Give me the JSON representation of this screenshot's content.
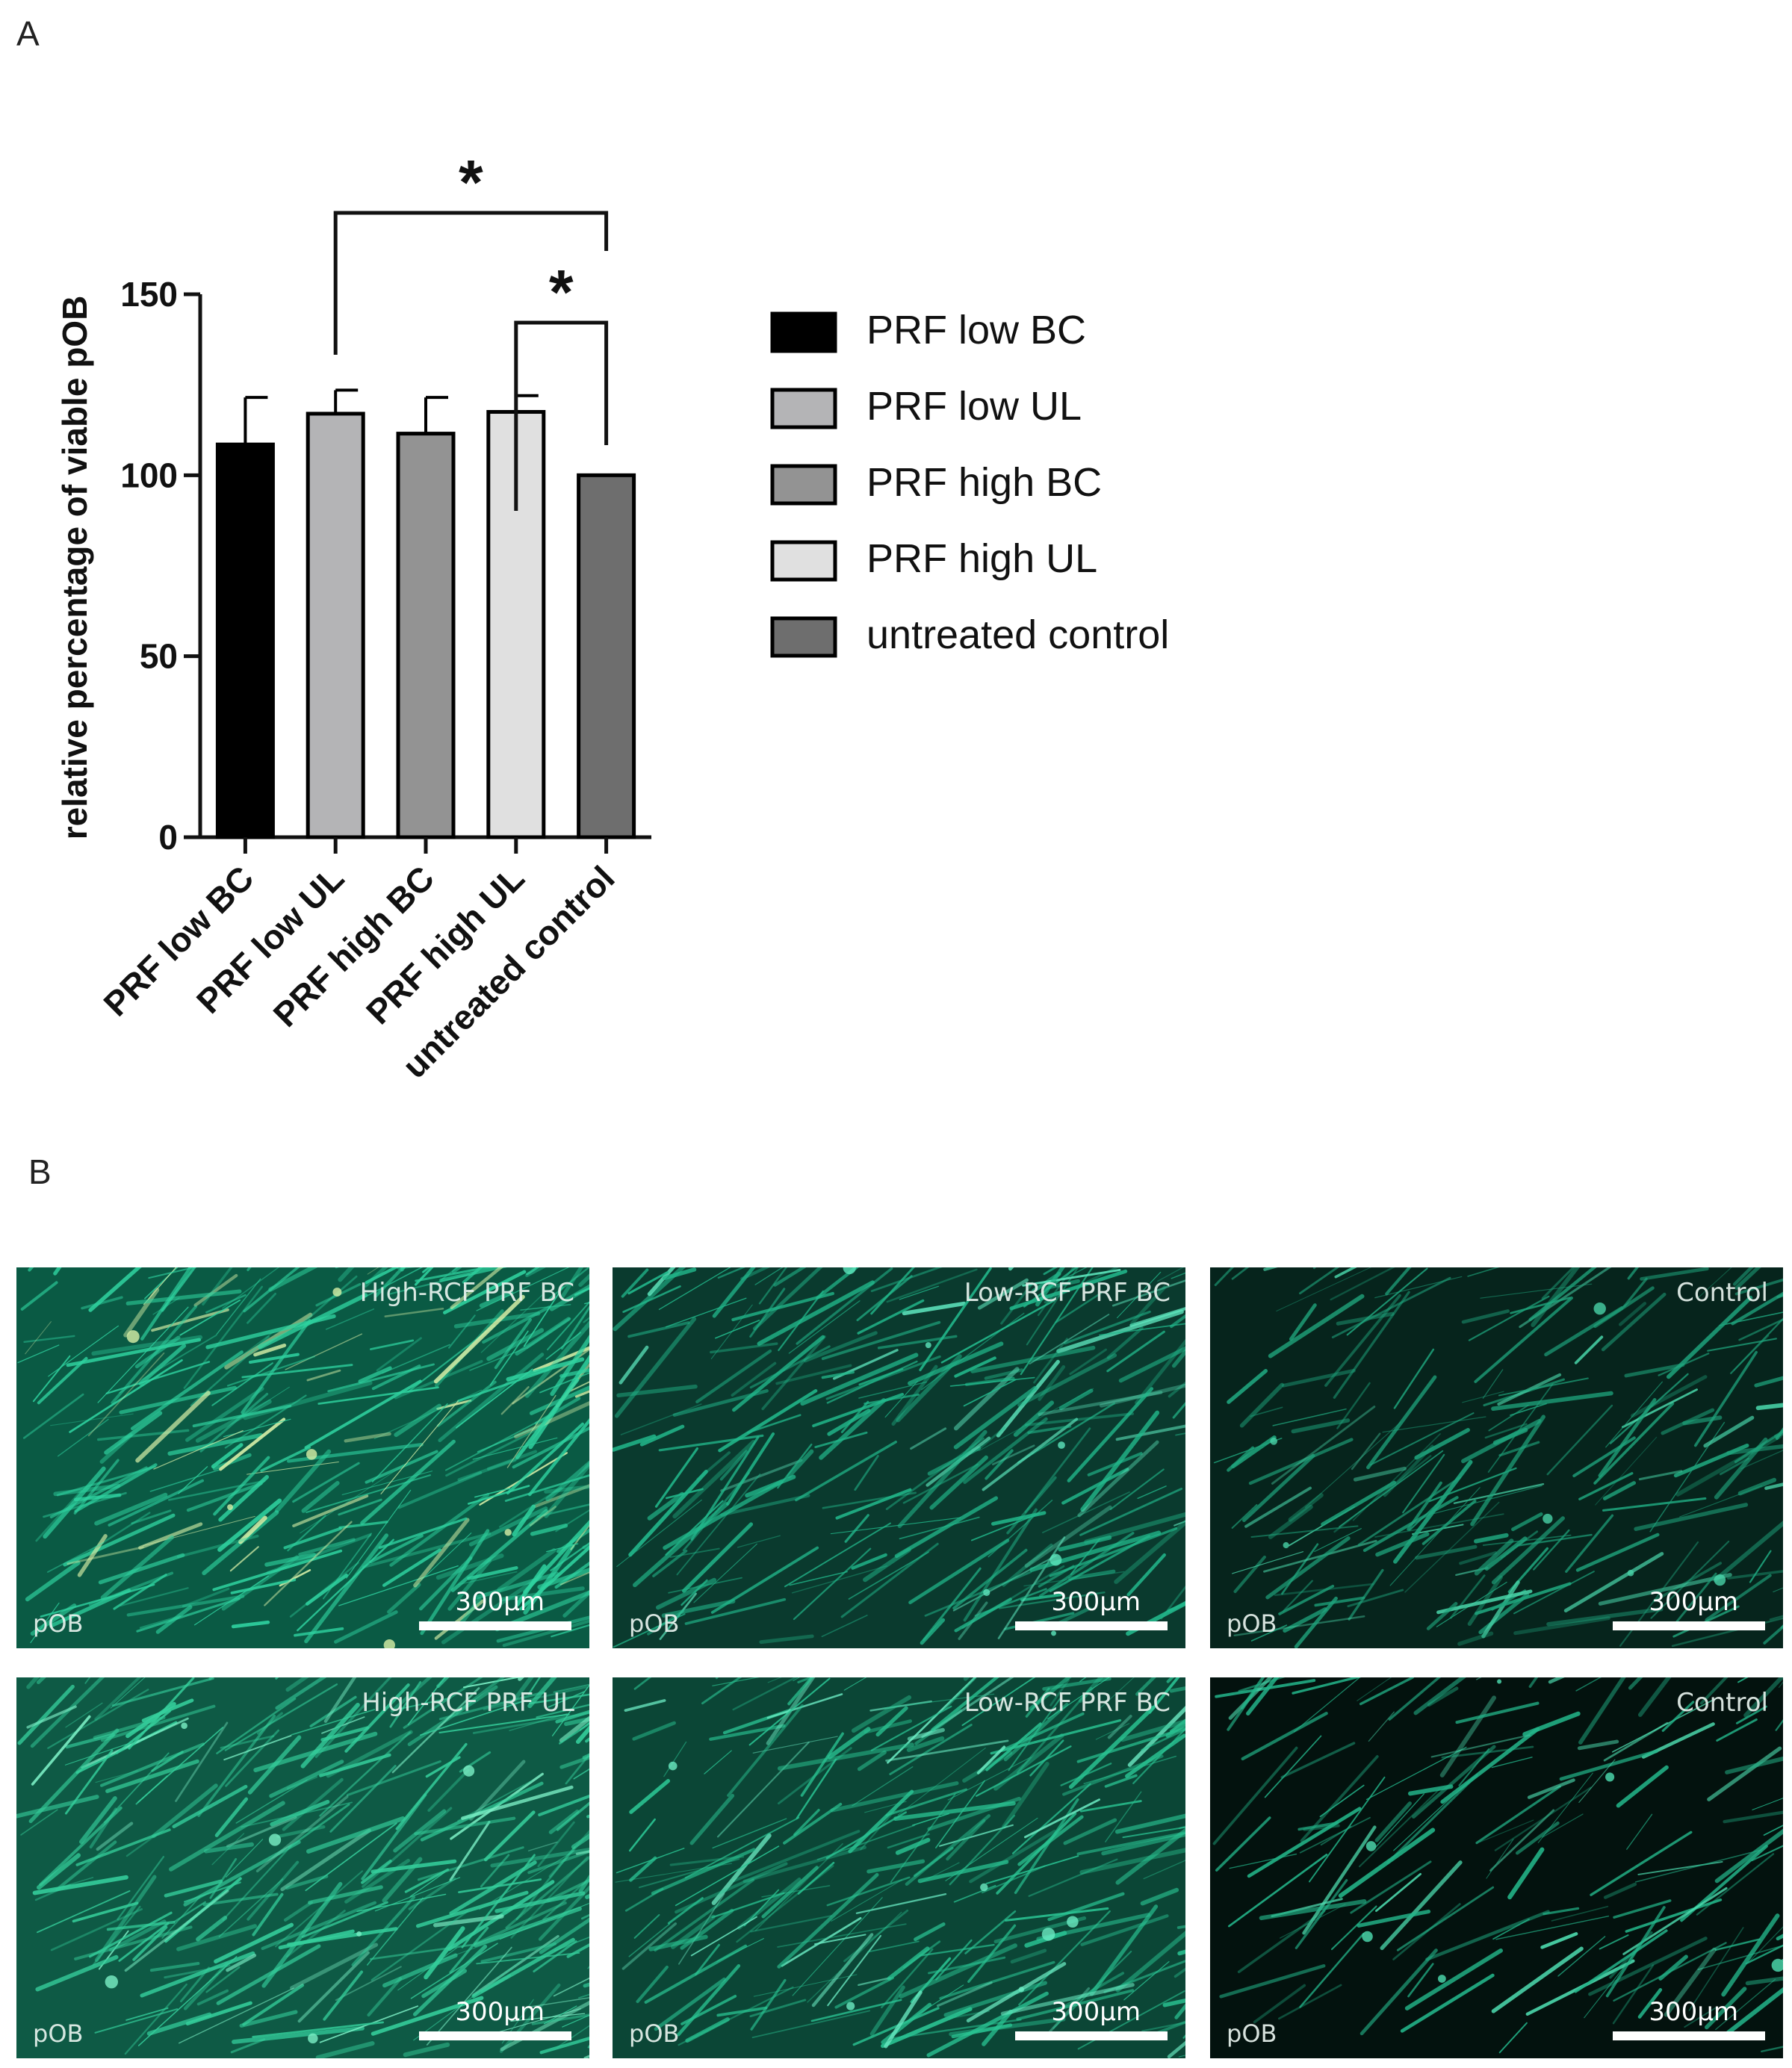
{
  "panel_a_label": "A",
  "panel_b_label": "B",
  "chart_data": {
    "type": "bar",
    "ylabel": "relative percentage of viable pOB",
    "ylim": [
      0,
      150
    ],
    "yticks": [
      0,
      50,
      100,
      150
    ],
    "categories": [
      "PRF low BC",
      "PRF low UL",
      "PRF high BC",
      "PRF high UL",
      "untreated control"
    ],
    "values": [
      108.5,
      117,
      111.5,
      117.5,
      100
    ],
    "errors": [
      13,
      6.5,
      10,
      4.5,
      0
    ],
    "colors": [
      "#000000",
      "#b4b4b6",
      "#939393",
      "#e0e0e0",
      "#6e6e6e"
    ],
    "legend": {
      "placement": "right",
      "entries": [
        "PRF low BC",
        "PRF low UL",
        "PRF high BC",
        "PRF high UL",
        "untreated control"
      ]
    },
    "significance": [
      {
        "from": "PRF low UL",
        "to": "untreated control",
        "label": "*"
      },
      {
        "from": "PRF high UL",
        "to": "untreated control",
        "label": "*"
      }
    ]
  },
  "micrographs": [
    {
      "title": "High-RCF PRF BC",
      "cell": "pOB",
      "scale": "300µm",
      "base": "#0a5a44",
      "fibre": "#2fd3a0",
      "highlight": "#d8f0a8",
      "seed": 11,
      "density": 0.95
    },
    {
      "title": "Low-RCF PRF BC",
      "cell": "pOB",
      "scale": "300µm",
      "base": "#0a3a2e",
      "fibre": "#22b98c",
      "highlight": "#5de6bd",
      "seed": 23,
      "density": 0.7
    },
    {
      "title": "Control",
      "cell": "pOB",
      "scale": "300µm",
      "base": "#06241c",
      "fibre": "#1fa57d",
      "highlight": "#48d2a7",
      "seed": 37,
      "density": 0.55
    },
    {
      "title": "High-RCF PRF UL",
      "cell": "pOB",
      "scale": "300µm",
      "base": "#0e5a45",
      "fibre": "#35cf9c",
      "highlight": "#7cf0c6",
      "seed": 41,
      "density": 0.9
    },
    {
      "title": "Low-RCF PRF BC",
      "cell": "pOB",
      "scale": "300µm",
      "base": "#0b4636",
      "fibre": "#2ac493",
      "highlight": "#6bebc3",
      "seed": 53,
      "density": 0.75
    },
    {
      "title": "Control",
      "cell": "pOB",
      "scale": "300µm",
      "base": "#03120e",
      "fibre": "#23b489",
      "highlight": "#4fe0b3",
      "seed": 67,
      "density": 0.35
    }
  ]
}
